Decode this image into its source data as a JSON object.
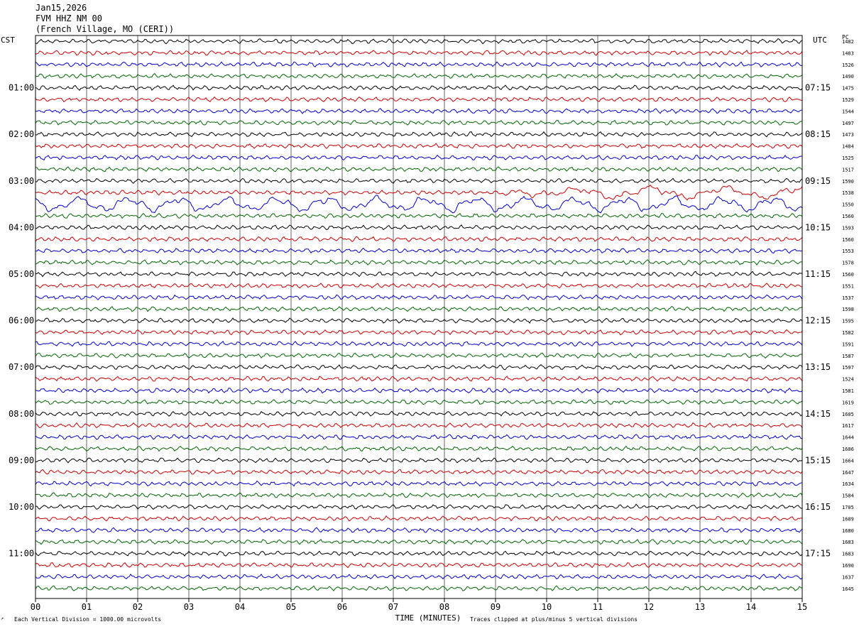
{
  "header": {
    "date": "Jan15,2026",
    "station": "FVM HHZ NM 00",
    "location": "(French Village, MO (CERI))"
  },
  "left_axis_label": "CST",
  "right_axis_label": "UTC",
  "pc_label": "PC",
  "footer": {
    "scale_note": "Each Vertical Division = 1000.00 microvolts",
    "clip_note": "Traces clipped at plus/minus 5 vertical divisions"
  },
  "chart_data": {
    "type": "line",
    "title": "FVM HHZ NM 00",
    "xlabel": "TIME (MINUTES)",
    "xlim": [
      0,
      15
    ],
    "x_ticks": [
      "00",
      "01",
      "02",
      "03",
      "04",
      "05",
      "06",
      "07",
      "08",
      "09",
      "10",
      "11",
      "12",
      "13",
      "14",
      "15"
    ],
    "trace_colors": [
      "#000000",
      "#cc0000",
      "#0000cc",
      "#006600"
    ],
    "rows_per_hour": 4,
    "left_hour_labels": [
      "01:00",
      "02:00",
      "03:00",
      "04:00",
      "05:00",
      "06:00",
      "07:00",
      "08:00",
      "09:00",
      "10:00",
      "11:00"
    ],
    "right_hour_labels": [
      "07:15",
      "08:15",
      "09:15",
      "10:15",
      "11:15",
      "12:15",
      "13:15",
      "14:15",
      "15:15",
      "16:15",
      "17:15"
    ],
    "row_values": [
      1482,
      1483,
      1526,
      1490,
      1475,
      1529,
      1544,
      1497,
      1473,
      1484,
      1525,
      1517,
      1590,
      1538,
      1550,
      1560,
      1593,
      1560,
      1553,
      1578,
      1560,
      1551,
      1537,
      1598,
      1595,
      1582,
      1591,
      1587,
      1597,
      1524,
      1581,
      1619,
      1605,
      1617,
      1644,
      1686,
      1664,
      1647,
      1634,
      1584,
      1705,
      1689,
      1680,
      1683,
      1683,
      1690,
      1637,
      1645
    ]
  }
}
